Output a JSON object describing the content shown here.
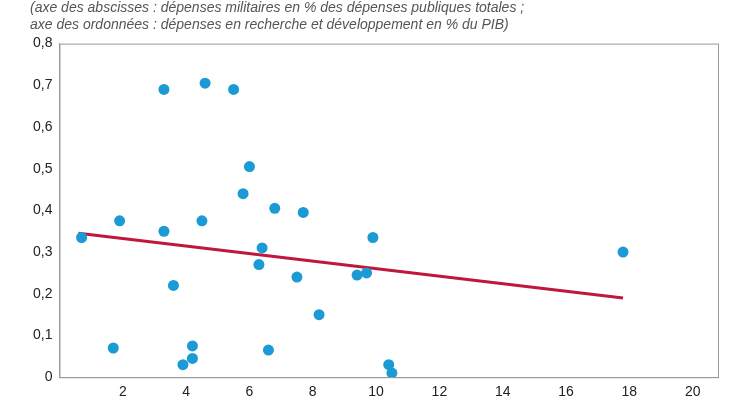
{
  "chart_data": {
    "type": "scatter",
    "subtitle": [
      "(axe des abscisses : dépenses militaires en % des dépenses publiques totales ;",
      "axe des ordonnées : dépenses en recherche et développement en % du PIB)"
    ],
    "series": [
      {
        "type": "scatter",
        "color": "#1b9ad6",
        "marker": "circle",
        "x": [
          0.7,
          1.7,
          1.9,
          3.3,
          3.3,
          3.6,
          3.9,
          4.2,
          4.2,
          4.5,
          4.6,
          5.5,
          5.8,
          6.0,
          6.3,
          6.4,
          6.6,
          6.8,
          7.5,
          7.7,
          8.2,
          9.4,
          9.7,
          9.9,
          10.4,
          10.5,
          17.8
        ],
        "values": [
          0.335,
          0.07,
          0.375,
          0.69,
          0.35,
          0.22,
          0.03,
          0.075,
          0.045,
          0.375,
          0.705,
          0.69,
          0.44,
          0.505,
          0.27,
          0.31,
          0.065,
          0.405,
          0.24,
          0.395,
          0.15,
          0.245,
          0.25,
          0.335,
          0.03,
          0.01,
          0.3
        ]
      },
      {
        "type": "line",
        "color": "#c0173c",
        "line_style": "solid",
        "x": [
          0.6,
          17.8
        ],
        "values": [
          0.345,
          0.19
        ]
      }
    ],
    "xlim": [
      0,
      20.8
    ],
    "xticks": [
      2,
      4,
      6,
      8,
      10,
      12,
      14,
      16,
      18,
      20
    ],
    "ylim": [
      0,
      0.8
    ],
    "yticks": [
      0,
      {
        "value": 0.1,
        "label": "0,1"
      },
      {
        "value": 0.2,
        "label": "0,2"
      },
      {
        "value": 0.3,
        "label": "0,3"
      },
      {
        "value": 0.4,
        "label": "0,4"
      },
      {
        "value": 0.5,
        "label": "0,5"
      },
      {
        "value": 0.6,
        "label": "0,6"
      },
      {
        "value": 0.7,
        "label": "0,7"
      },
      {
        "value": 0.8,
        "label": "0,8"
      }
    ],
    "grid": false,
    "legend": false
  }
}
